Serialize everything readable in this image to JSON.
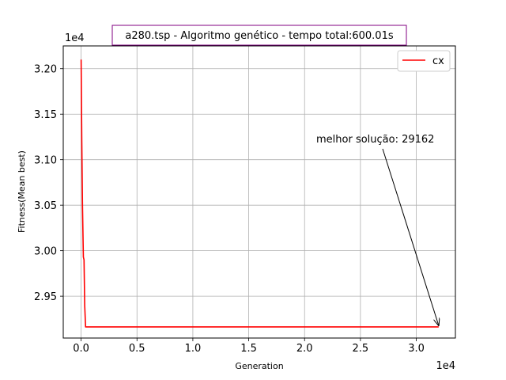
{
  "chart_data": {
    "type": "line",
    "title": "a280.tsp - Algoritmo genético - tempo total:600.01s",
    "xlabel": "Generation",
    "ylabel": "Fitness(Mean best)",
    "x_offset_label": "1e4",
    "y_offset_label": "1e4",
    "xlim": [
      -1600,
      33500
    ],
    "ylim": [
      29040,
      32250
    ],
    "xticks": [
      0,
      5000,
      10000,
      15000,
      20000,
      25000,
      30000
    ],
    "xtick_labels": [
      "0.0",
      "0.5",
      "1.0",
      "1.5",
      "2.0",
      "2.5",
      "3.0"
    ],
    "yticks": [
      29500,
      30000,
      30500,
      31000,
      31500,
      32000
    ],
    "ytick_labels": [
      "2.95",
      "3.00",
      "3.05",
      "3.10",
      "3.15",
      "3.20"
    ],
    "grid": true,
    "legend": {
      "placement": "top-right",
      "entries": [
        "cx"
      ]
    },
    "series": [
      {
        "name": "cx",
        "color": "#ff0000",
        "x": [
          0,
          20,
          60,
          120,
          200,
          260,
          320,
          400,
          32000
        ],
        "y": [
          32100,
          31800,
          31200,
          30500,
          29930,
          29900,
          29400,
          29162,
          29162
        ]
      }
    ],
    "annotation": {
      "text": "melhor solução: 29162",
      "target_x": 32000,
      "target_y": 29162
    },
    "title_color": "#800080"
  }
}
